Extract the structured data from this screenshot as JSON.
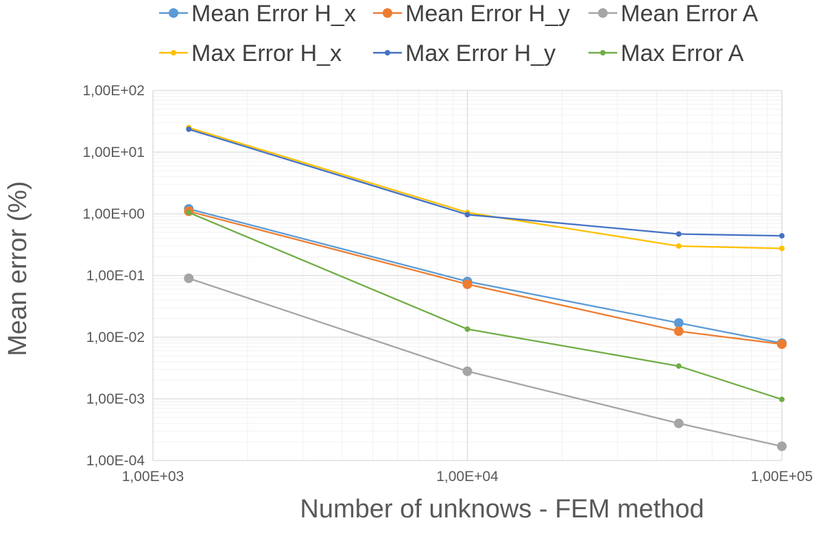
{
  "chart_data": {
    "type": "line",
    "title": "",
    "xlabel": "Number of unknows - FEM method",
    "ylabel": "Mean error (%)",
    "xscale": "log",
    "yscale": "log",
    "xlim": [
      1000,
      100000
    ],
    "ylim": [
      0.0001,
      100
    ],
    "grid": true,
    "legend_position": "top",
    "x_ticks": [
      {
        "value": 1000,
        "label": "1,00E+03"
      },
      {
        "value": 10000,
        "label": "1,00E+04"
      },
      {
        "value": 100000,
        "label": "1,00E+05"
      }
    ],
    "y_ticks": [
      {
        "value": 100,
        "label": "1,00E+02"
      },
      {
        "value": 10,
        "label": "1,00E+01"
      },
      {
        "value": 1,
        "label": "1,00E+00"
      },
      {
        "value": 0.1,
        "label": "1,00E-01"
      },
      {
        "value": 0.01,
        "label": "1,00E-02"
      },
      {
        "value": 0.001,
        "label": "1,00E-03"
      },
      {
        "value": 0.0001,
        "label": "1,00E-04"
      }
    ],
    "x": [
      1300,
      10000,
      47000,
      100000
    ],
    "series": [
      {
        "name": "Mean Error H_x",
        "color": "#5B9BD5",
        "marker": "large",
        "values": [
          1.2,
          0.08,
          0.017,
          0.008
        ]
      },
      {
        "name": "Mean Error H_y",
        "color": "#ED7D31",
        "marker": "large",
        "values": [
          1.1,
          0.072,
          0.0125,
          0.0077
        ]
      },
      {
        "name": "Mean Error A",
        "color": "#A5A5A5",
        "marker": "large",
        "values": [
          0.09,
          0.0028,
          0.0004,
          0.00017
        ]
      },
      {
        "name": "Max Error H_x",
        "color": "#FFC000",
        "marker": "small",
        "values": [
          25,
          1.05,
          0.3,
          0.275
        ]
      },
      {
        "name": "Max Error H_y",
        "color": "#4472C4",
        "marker": "small",
        "values": [
          23.5,
          0.97,
          0.47,
          0.44
        ]
      },
      {
        "name": "Max Error A",
        "color": "#70AD47",
        "marker": "small",
        "values": [
          1.05,
          0.0135,
          0.0034,
          0.00098
        ]
      }
    ]
  }
}
